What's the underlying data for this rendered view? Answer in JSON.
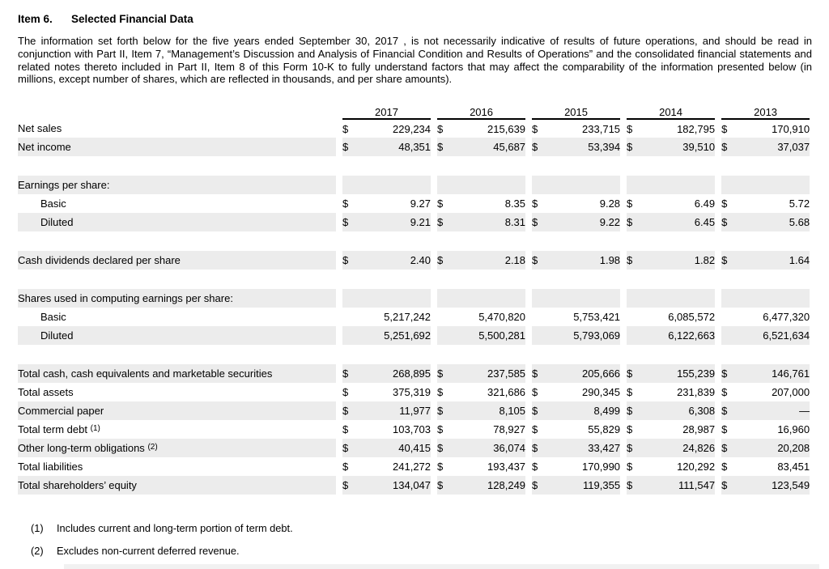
{
  "colors": {
    "row_shading": "#ececec",
    "text": "#000000",
    "header_rule": "#000000"
  },
  "header": {
    "item_label": "Item 6.",
    "title": "Selected Financial Data"
  },
  "intro_text": "The information set forth below for the five years ended September 30, 2017 , is not necessarily indicative of results of future operations, and should be read in conjunction with Part II, Item 7, “Management’s Discussion and Analysis of Financial Condition and Results of Operations” and the consolidated financial statements and related notes thereto included in Part II, Item 8 of this Form 10-K to fully understand factors that may affect the comparability of the information presented below (in millions, except number of shares, which are reflected in thousands, and per share amounts).",
  "table": {
    "currency_symbol": "$",
    "years": [
      "2017",
      "2016",
      "2015",
      "2014",
      "2013"
    ],
    "rows": [
      {
        "label": "Net sales",
        "dollar": true,
        "shaded": false,
        "indent": 0,
        "values": [
          "229,234",
          "215,639",
          "233,715",
          "182,795",
          "170,910"
        ]
      },
      {
        "label": "Net income",
        "dollar": true,
        "shaded": true,
        "indent": 0,
        "values": [
          "48,351",
          "45,687",
          "53,394",
          "39,510",
          "37,037"
        ]
      },
      {
        "type": "spacer"
      },
      {
        "label": "Earnings per share:",
        "section": true,
        "shaded": true,
        "indent": 0
      },
      {
        "label": "Basic",
        "dollar": true,
        "shaded": false,
        "indent": 1,
        "values": [
          "9.27",
          "8.35",
          "9.28",
          "6.49",
          "5.72"
        ]
      },
      {
        "label": "Diluted",
        "dollar": true,
        "shaded": true,
        "indent": 1,
        "values": [
          "9.21",
          "8.31",
          "9.22",
          "6.45",
          "5.68"
        ]
      },
      {
        "type": "spacer"
      },
      {
        "label": "Cash dividends declared per share",
        "dollar": true,
        "shaded": true,
        "indent": 0,
        "values": [
          "2.40",
          "2.18",
          "1.98",
          "1.82",
          "1.64"
        ]
      },
      {
        "type": "spacer"
      },
      {
        "label": "Shares used in computing earnings per share:",
        "section": true,
        "shaded": true,
        "indent": 0
      },
      {
        "label": "Basic",
        "dollar": false,
        "shaded": false,
        "indent": 1,
        "values": [
          "5,217,242",
          "5,470,820",
          "5,753,421",
          "6,085,572",
          "6,477,320"
        ]
      },
      {
        "label": "Diluted",
        "dollar": false,
        "shaded": true,
        "indent": 1,
        "values": [
          "5,251,692",
          "5,500,281",
          "5,793,069",
          "6,122,663",
          "6,521,634"
        ]
      },
      {
        "type": "spacer"
      },
      {
        "label": "Total cash, cash equivalents and marketable securities",
        "dollar": true,
        "shaded": true,
        "indent": 0,
        "values": [
          "268,895",
          "237,585",
          "205,666",
          "155,239",
          "146,761"
        ]
      },
      {
        "label": "Total assets",
        "dollar": true,
        "shaded": false,
        "indent": 0,
        "values": [
          "375,319",
          "321,686",
          "290,345",
          "231,839",
          "207,000"
        ]
      },
      {
        "label": "Commercial paper",
        "dollar": true,
        "shaded": true,
        "indent": 0,
        "values": [
          "11,977",
          "8,105",
          "8,499",
          "6,308",
          "—"
        ]
      },
      {
        "label": "Total term debt",
        "sup": "(1)",
        "dollar": true,
        "shaded": false,
        "indent": 0,
        "values": [
          "103,703",
          "78,927",
          "55,829",
          "28,987",
          "16,960"
        ]
      },
      {
        "label": "Other long-term obligations",
        "sup": "(2)",
        "dollar": true,
        "shaded": true,
        "indent": 0,
        "values": [
          "40,415",
          "36,074",
          "33,427",
          "24,826",
          "20,208"
        ]
      },
      {
        "label": "Total liabilities",
        "dollar": true,
        "shaded": false,
        "indent": 0,
        "values": [
          "241,272",
          "193,437",
          "170,990",
          "120,292",
          "83,451"
        ]
      },
      {
        "label": "Total shareholders’ equity",
        "dollar": true,
        "shaded": true,
        "indent": 0,
        "values": [
          "134,047",
          "128,249",
          "119,355",
          "111,547",
          "123,549"
        ]
      }
    ]
  },
  "footnotes": [
    {
      "marker": "(1)",
      "text": "Includes current and long-term portion of term debt."
    },
    {
      "marker": "(2)",
      "text": "Excludes non-current deferred revenue."
    }
  ]
}
